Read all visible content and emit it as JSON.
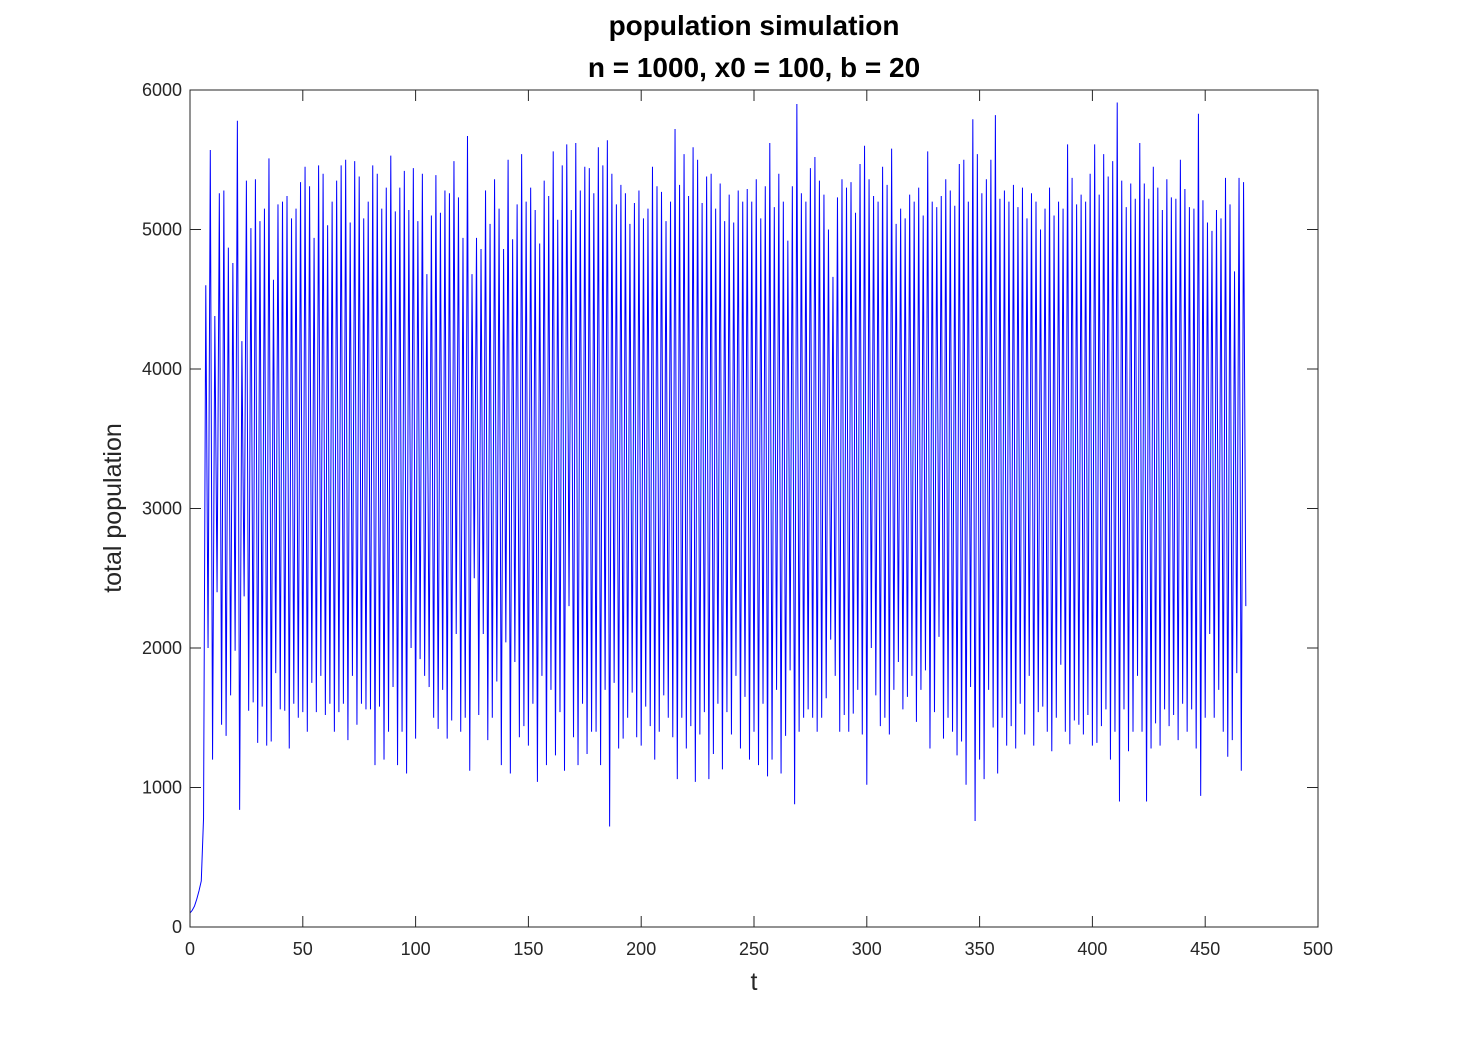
{
  "chart_data": {
    "type": "line",
    "title": "population simulation",
    "subtitle": "n = 1000, x0 = 100, b = 20",
    "xlabel": "t",
    "ylabel": "total population",
    "xlim": [
      0,
      500
    ],
    "ylim": [
      0,
      6000
    ],
    "x_ticks": [
      "0",
      "50",
      "100",
      "150",
      "200",
      "250",
      "300",
      "350",
      "400",
      "450",
      "500"
    ],
    "y_ticks": [
      "0",
      "1000",
      "2000",
      "3000",
      "4000",
      "5000",
      "6000"
    ],
    "grid": false,
    "line_color": "#0000ff",
    "series": [
      {
        "name": "total population",
        "x_start": 0,
        "x_step": 1,
        "values": [
          100,
          120,
          150,
          200,
          260,
          330,
          780,
          4600,
          2000,
          5570,
          1200,
          4380,
          2400,
          5260,
          1450,
          5280,
          1370,
          4870,
          1660,
          4760,
          1980,
          5780,
          840,
          4200,
          2370,
          5350,
          1550,
          5010,
          1610,
          5360,
          1320,
          5060,
          1580,
          5150,
          1300,
          5510,
          1330,
          4640,
          1820,
          5180,
          1560,
          5200,
          1550,
          5240,
          1280,
          5080,
          1600,
          5150,
          1500,
          5340,
          1540,
          5450,
          1400,
          5310,
          1750,
          4940,
          1540,
          5460,
          1800,
          5400,
          1520,
          5030,
          1600,
          5200,
          1400,
          5350,
          1540,
          5460,
          1600,
          5500,
          1340,
          5050,
          1800,
          5490,
          1450,
          5380,
          1600,
          5080,
          1560,
          5200,
          1560,
          5460,
          1160,
          5400,
          1580,
          5150,
          1200,
          5300,
          1400,
          5530,
          1720,
          5130,
          1160,
          5300,
          1400,
          5420,
          1100,
          5140,
          2000,
          5440,
          1350,
          5060,
          1920,
          5400,
          1800,
          4680,
          1720,
          5100,
          1500,
          5390,
          1420,
          5120,
          1700,
          5280,
          1350,
          5260,
          1480,
          5490,
          2100,
          5230,
          1400,
          4940,
          1500,
          5670,
          1120,
          4680,
          2500,
          4940,
          1520,
          4860,
          2100,
          5280,
          1340,
          5040,
          1500,
          5360,
          1760,
          5150,
          1160,
          4860,
          2040,
          5500,
          1100,
          4930,
          1900,
          5180,
          1360,
          5540,
          1440,
          5200,
          1300,
          5300,
          1600,
          5140,
          1040,
          4900,
          1800,
          5350,
          1160,
          5240,
          1700,
          5560,
          1230,
          5070,
          1540,
          5460,
          1120,
          5610,
          2300,
          5140,
          1360,
          5620,
          1160,
          5280,
          1600,
          5450,
          1240,
          5440,
          1400,
          5260,
          1400,
          5590,
          1160,
          5460,
          1700,
          5640,
          720,
          5400,
          1750,
          5180,
          1280,
          5320,
          1350,
          5260,
          1500,
          5040,
          1680,
          5190,
          1360,
          5280,
          1300,
          5080,
          1580,
          5150,
          1440,
          5450,
          1200,
          5310,
          1400,
          5270,
          1660,
          5060,
          1500,
          5200,
          1360,
          5720,
          1060,
          5320,
          1500,
          5540,
          1280,
          5240,
          1440,
          5590,
          1040,
          5500,
          1380,
          5190,
          1540,
          5380,
          1060,
          5400,
          1240,
          5150,
          1600,
          5330,
          1130,
          5060,
          1540,
          5250,
          1380,
          5050,
          1800,
          5280,
          1280,
          5200,
          1650,
          5290,
          1200,
          5200,
          1400,
          5360,
          1160,
          5080,
          1600,
          5310,
          1080,
          5620,
          1200,
          5160,
          1700,
          5400,
          1100,
          5200,
          1370,
          4920,
          1840,
          5310,
          880,
          5900,
          1400,
          5260,
          1500,
          5200,
          1560,
          5440,
          1500,
          5520,
          1400,
          5350,
          1500,
          5250,
          1640,
          5000,
          2060,
          4660,
          1800,
          5230,
          1400,
          5360,
          1520,
          5300,
          1400,
          5340,
          1530,
          5120,
          1700,
          5470,
          1380,
          5600,
          1020,
          5360,
          2000,
          5240,
          1660,
          5200,
          1440,
          5450,
          1500,
          5320,
          1380,
          5580,
          1700,
          5040,
          1900,
          5150,
          1560,
          5080,
          1650,
          5250,
          1800,
          5200,
          1470,
          5300,
          1700,
          5100,
          1840,
          5560,
          1280,
          5200,
          1540,
          5160,
          2080,
          5240,
          1350,
          5360,
          1500,
          5280,
          1400,
          5170,
          1230,
          5470,
          1330,
          5500,
          1020,
          5200,
          1720,
          5790,
          760,
          5540,
          1200,
          5260,
          1060,
          5360,
          1700,
          5500,
          1430,
          5820,
          1100,
          5220,
          1500,
          5280,
          1300,
          5200,
          1440,
          5320,
          1280,
          5160,
          1600,
          5300,
          1380,
          5080,
          1800,
          5260,
          1300,
          5200,
          1540,
          5000,
          1580,
          5150,
          1400,
          5300,
          1260,
          5100,
          1500,
          5200,
          1880,
          5150,
          1400,
          5610,
          1310,
          5370,
          1480,
          5180,
          1450,
          5250,
          1380,
          5200,
          1520,
          5400,
          1300,
          5610,
          1320,
          5250,
          1440,
          5540,
          1560,
          5380,
          1200,
          5490,
          1400,
          5910,
          900,
          5350,
          1560,
          5160,
          1260,
          5330,
          1400,
          5220,
          1800,
          5620,
          1400,
          5330,
          900,
          5220,
          1280,
          5450,
          1460,
          5300,
          1300,
          5140,
          1560,
          5360,
          1440,
          5230,
          1520,
          5220,
          1340,
          5500,
          1600,
          5290,
          1400,
          5160,
          1560,
          5150,
          1280,
          5830,
          940,
          5210,
          1500,
          5050,
          2100,
          4990,
          1500,
          5140,
          1700,
          5080,
          1400,
          5370,
          1220,
          5180,
          1340,
          4700,
          1820,
          5370,
          1120,
          5340,
          2300
        ]
      }
    ]
  }
}
